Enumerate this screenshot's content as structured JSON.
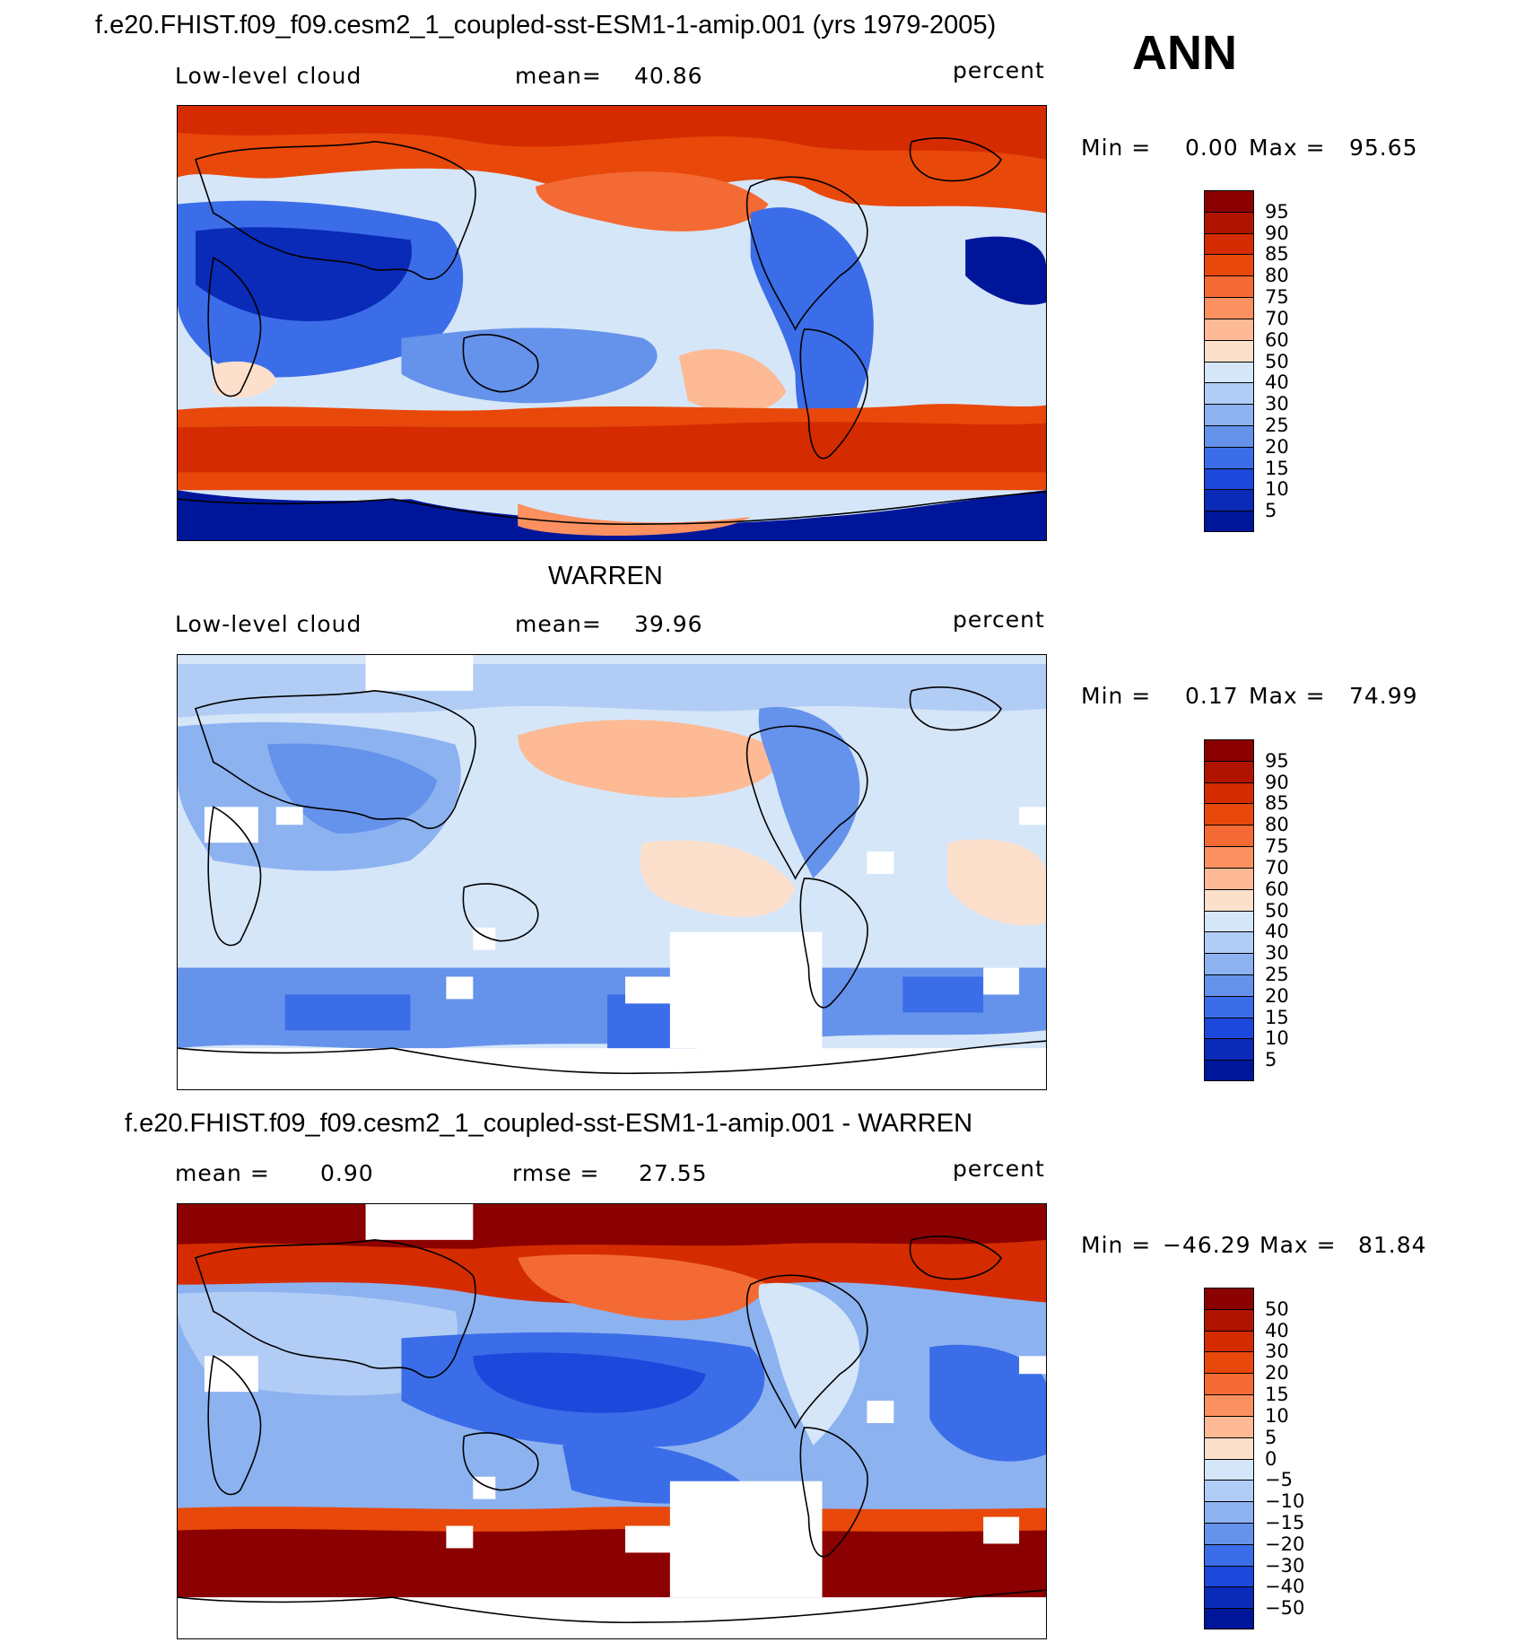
{
  "header": {
    "case_title": "f.e20.FHIST.f09_f09.cesm2_1_coupled-sst-ESM1-1-amip.001 (yrs 1979-2005)",
    "season": "ANN",
    "obs_title": "WARREN",
    "diff_title": "f.e20.FHIST.f09_f09.cesm2_1_coupled-sst-ESM1-1-amip.001 - WARREN"
  },
  "chart_data": [
    {
      "type": "heatmap",
      "projection": "cylindrical-equidistant-pacific-centered",
      "title": "f.e20.FHIST.f09_f09.cesm2_1_coupled-sst-ESM1-1-amip.001 (yrs 1979-2005)",
      "variable": "Low-level cloud",
      "stat_label": "mean=",
      "stat_value": "40.86",
      "units": "percent",
      "min_label": "Min =",
      "min": "0.00",
      "max_label": "Max =",
      "max": "95.65",
      "levels": [
        "95",
        "90",
        "85",
        "80",
        "75",
        "70",
        "60",
        "50",
        "40",
        "30",
        "25",
        "20",
        "15",
        "10",
        "5"
      ],
      "colors": [
        "#8b0000",
        "#b01400",
        "#d42c00",
        "#e8480a",
        "#f46a34",
        "#fb9060",
        "#fdba94",
        "#fde0cc",
        "#d6e6f9",
        "#b2cdf5",
        "#8db2f0",
        "#6592eb",
        "#3b6de8",
        "#1c49dc",
        "#0a2ab8",
        "#00169a"
      ]
    },
    {
      "type": "heatmap",
      "projection": "cylindrical-equidistant-pacific-centered",
      "title": "WARREN",
      "variable": "Low-level cloud",
      "stat_label": "mean=",
      "stat_value": "39.96",
      "units": "percent",
      "min_label": "Min =",
      "min": "0.17",
      "max_label": "Max =",
      "max": "74.99",
      "levels": [
        "95",
        "90",
        "85",
        "80",
        "75",
        "70",
        "60",
        "50",
        "40",
        "30",
        "25",
        "20",
        "15",
        "10",
        "5"
      ],
      "colors": [
        "#8b0000",
        "#b01400",
        "#d42c00",
        "#e8480a",
        "#f46a34",
        "#fb9060",
        "#fdba94",
        "#fde0cc",
        "#d6e6f9",
        "#b2cdf5",
        "#8db2f0",
        "#6592eb",
        "#3b6de8",
        "#1c49dc",
        "#0a2ab8",
        "#00169a"
      ]
    },
    {
      "type": "heatmap",
      "projection": "cylindrical-equidistant-pacific-centered",
      "title": "f.e20.FHIST.f09_f09.cesm2_1_coupled-sst-ESM1-1-amip.001 - WARREN",
      "mean_label": "mean =",
      "mean_value": "0.90",
      "rmse_label": "rmse =",
      "rmse_value": "27.55",
      "units": "percent",
      "min_label": "Min =",
      "min": "−46.29",
      "max_label": "Max =",
      "max": "81.84",
      "levels": [
        "50",
        "40",
        "30",
        "20",
        "15",
        "10",
        "5",
        "0",
        "−5",
        "−10",
        "−15",
        "−20",
        "−30",
        "−40",
        "−50"
      ],
      "colors": [
        "#8b0000",
        "#b01400",
        "#d42c00",
        "#e8480a",
        "#f46a34",
        "#fb9060",
        "#fdba94",
        "#fde0cc",
        "#d6e6f9",
        "#b2cdf5",
        "#8db2f0",
        "#6592eb",
        "#3b6de8",
        "#1c49dc",
        "#0a2ab8",
        "#00169a"
      ]
    }
  ]
}
